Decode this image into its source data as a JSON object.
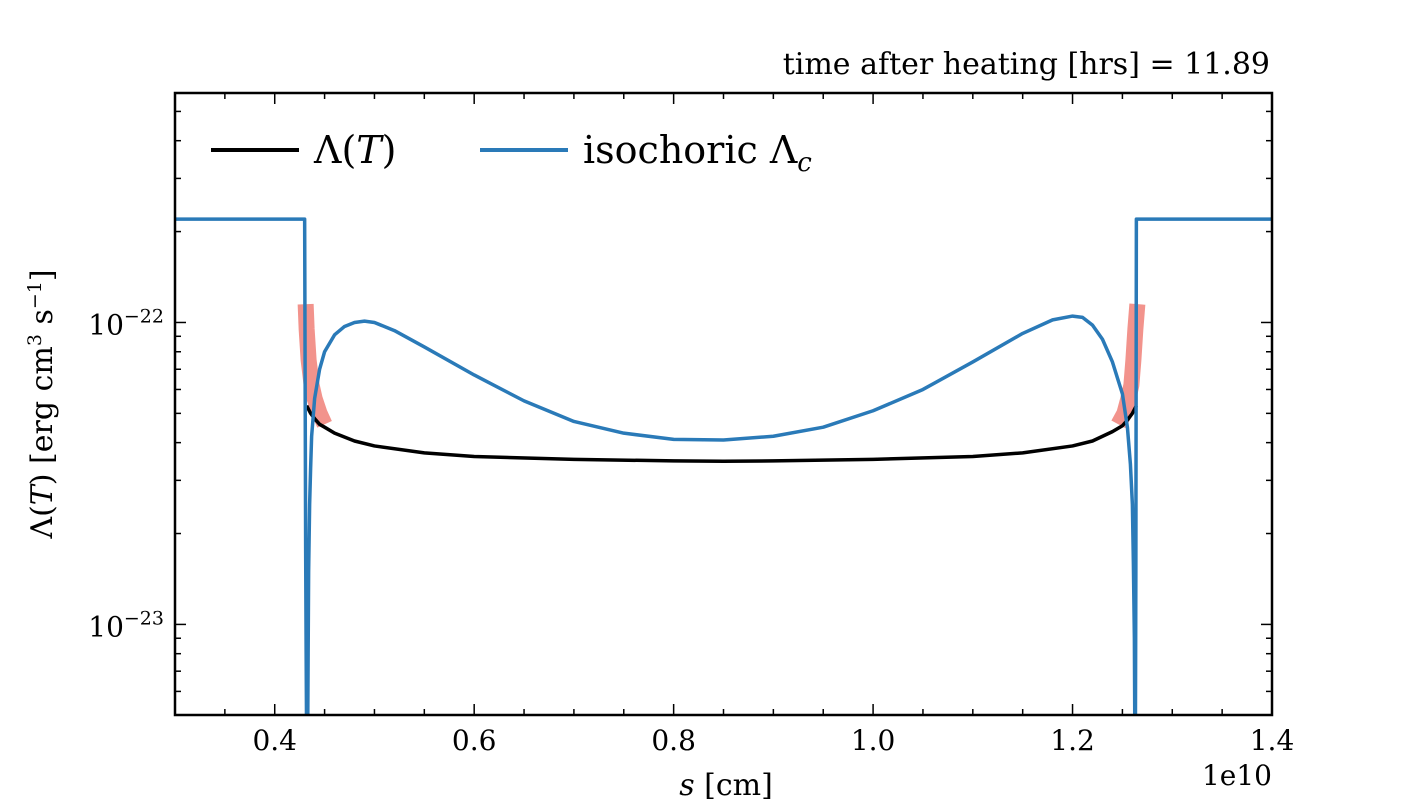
{
  "chart_data": {
    "type": "line",
    "title": "time after heating [hrs] = 11.89",
    "xlabel_var": "s",
    "xlabel_unit": "[cm]",
    "x_offset_label": "1e10",
    "ylabel_pre": "Λ(",
    "ylabel_var": "T",
    "ylabel_post": ") [erg cm",
    "ylabel_exp1": "3",
    "ylabel_mid": " s",
    "ylabel_exp2": "−1",
    "ylabel_end": "]",
    "xlim": [
      0.3,
      1.4
    ],
    "ylim_log10": [
      -23.3,
      -21.24
    ],
    "yscale": "log",
    "x_ticks": [
      0.4,
      0.6,
      0.8,
      1.0,
      1.2,
      1.4
    ],
    "x_tick_labels": [
      "0.4",
      "0.6",
      "0.8",
      "1.0",
      "1.2",
      "1.4"
    ],
    "y_ticks_log10": [
      -23,
      -22
    ],
    "y_tick_labels": [
      {
        "base": "10",
        "exp": "−23"
      },
      {
        "base": "10",
        "exp": "−22"
      }
    ],
    "legend": {
      "placement": "top-left",
      "entries": [
        {
          "label_pre": "Λ(",
          "label_var": "T",
          "label_post": ")",
          "color": "#000000"
        },
        {
          "label_pre": "isochoric Λ",
          "label_var": "c",
          "label_post": "",
          "color": "#2a7ab8"
        }
      ]
    },
    "series": [
      {
        "name": "Λ(T)",
        "color": "#000000",
        "x": [
          0.432,
          0.436,
          0.44,
          0.445,
          0.45,
          0.46,
          0.48,
          0.5,
          0.55,
          0.6,
          0.7,
          0.8,
          0.85,
          0.9,
          1.0,
          1.1,
          1.15,
          1.2,
          1.22,
          1.24,
          1.25,
          1.255,
          1.26,
          1.264
        ],
        "y": [
          5.3e-23,
          5e-23,
          4.8e-23,
          4.6e-23,
          4.5e-23,
          4.3e-23,
          4.05e-23,
          3.9e-23,
          3.7e-23,
          3.6e-23,
          3.52e-23,
          3.48e-23,
          3.47e-23,
          3.48e-23,
          3.52e-23,
          3.6e-23,
          3.7e-23,
          3.9e-23,
          4.05e-23,
          4.35e-23,
          4.55e-23,
          4.75e-23,
          5e-23,
          5.3e-23
        ]
      },
      {
        "name": "isochoric Λc",
        "color": "#2a7ab8",
        "x": [
          0.3,
          0.4,
          0.43,
          0.431,
          0.4315,
          0.432,
          0.433,
          0.4335,
          0.434,
          0.435,
          0.436,
          0.437,
          0.44,
          0.445,
          0.45,
          0.46,
          0.47,
          0.48,
          0.49,
          0.5,
          0.52,
          0.55,
          0.6,
          0.65,
          0.7,
          0.75,
          0.8,
          0.85,
          0.9,
          0.95,
          1.0,
          1.05,
          1.1,
          1.15,
          1.18,
          1.2,
          1.21,
          1.22,
          1.23,
          1.24,
          1.25,
          1.255,
          1.258,
          1.26,
          1.261,
          1.262,
          1.2625,
          1.263,
          1.2635,
          1.264,
          1.265,
          1.3,
          1.4
        ],
        "y": [
          2.2e-22,
          2.2e-22,
          2.2e-22,
          1.8e-23,
          8e-24,
          4e-24,
          4e-24,
          8e-24,
          1.5e-23,
          2.5e-23,
          3.3e-23,
          4.2e-23,
          5.6e-23,
          7e-23,
          8e-23,
          9.1e-23,
          9.7e-23,
          1e-22,
          1.01e-22,
          1e-22,
          9.4e-23,
          8.3e-23,
          6.7e-23,
          5.5e-23,
          4.7e-23,
          4.3e-23,
          4.1e-23,
          4.08e-23,
          4.2e-23,
          4.5e-23,
          5.1e-23,
          6e-23,
          7.4e-23,
          9.2e-23,
          1.02e-22,
          1.05e-22,
          1.04e-22,
          9.8e-23,
          8.8e-23,
          7.4e-23,
          5.8e-23,
          4.5e-23,
          3.4e-23,
          2.5e-23,
          1.6e-23,
          9e-24,
          4e-24,
          4e-24,
          1.5e-23,
          2.2e-22,
          2.2e-22,
          2.2e-22,
          2.2e-22
        ]
      },
      {
        "name": "",
        "color": "#f08078",
        "x": [
          0.431,
          0.432,
          0.434,
          0.437,
          0.44,
          0.445,
          0.45
        ],
        "y": [
          1.15e-22,
          9.5e-23,
          7.5e-23,
          6.2e-23,
          5.6e-23,
          5e-23,
          4.6e-23
        ]
      },
      {
        "name": "",
        "color": "#f08078",
        "x": [
          1.246,
          1.252,
          1.256,
          1.259,
          1.261,
          1.263,
          1.265
        ],
        "y": [
          4.6e-23,
          5e-23,
          5.6e-23,
          6.2e-23,
          7.5e-23,
          9.5e-23,
          1.15e-22
        ]
      }
    ],
    "grid": false,
    "colors": {
      "lambda": "#000000",
      "isochoric": "#2a7ab8",
      "highlight": "#f08078"
    }
  }
}
